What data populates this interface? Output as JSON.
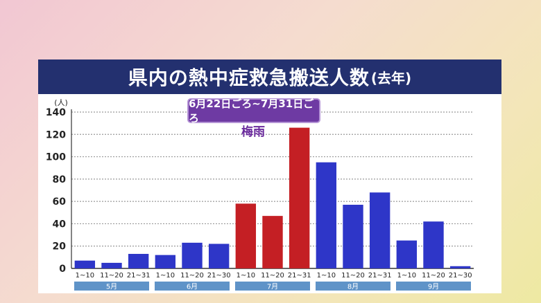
{
  "header": {
    "title": "県内の熱中症救急搬送人数",
    "subtitle": "(去年)"
  },
  "annotation": {
    "period": "6月22日ごろ~7月31日ごろ",
    "label": "梅雨"
  },
  "colors": {
    "normal": "#2e36c8",
    "rainy_season": "#c41f24",
    "title_bg": "#23306f",
    "month_band": "#5f93c8",
    "annotation_bg": "#6e3aa3"
  },
  "chart_data": {
    "type": "bar",
    "ylabel": "(人)",
    "ylim": [
      0,
      140
    ],
    "yticks": [
      0,
      20,
      40,
      60,
      80,
      100,
      120,
      140
    ],
    "grid": true,
    "categories": [
      "1~10",
      "11~20",
      "21~31",
      "1~10",
      "11~20",
      "21~30",
      "1~10",
      "11~20",
      "21~31",
      "1~10",
      "11~20",
      "21~31",
      "1~10",
      "11~20",
      "21~30"
    ],
    "values": [
      7,
      5,
      13,
      12,
      23,
      22,
      58,
      47,
      126,
      95,
      57,
      68,
      25,
      42,
      2
    ],
    "highlight": [
      false,
      false,
      false,
      false,
      false,
      false,
      true,
      true,
      true,
      false,
      false,
      false,
      false,
      false,
      false
    ],
    "months": [
      {
        "label": "5月",
        "count": 3
      },
      {
        "label": "6月",
        "count": 3
      },
      {
        "label": "7月",
        "count": 3
      },
      {
        "label": "8月",
        "count": 3
      },
      {
        "label": "9月",
        "count": 3
      }
    ]
  }
}
